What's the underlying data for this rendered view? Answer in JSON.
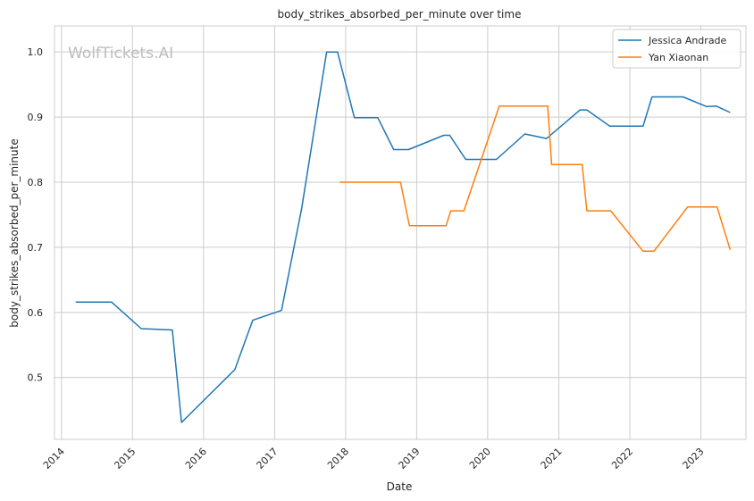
{
  "watermark": "WolfTickets.AI",
  "chart_data": {
    "type": "line",
    "title": "body_strikes_absorbed_per_minute over time",
    "xlabel": "Date",
    "ylabel": "body_strikes_absorbed_per_minute",
    "x_axis_type": "date",
    "xlim": [
      "2013-11-26",
      "2023-08-21"
    ],
    "ylim": [
      0.405,
      1.04
    ],
    "x_ticks": [
      "2014",
      "2015",
      "2016",
      "2017",
      "2018",
      "2019",
      "2020",
      "2021",
      "2022",
      "2023"
    ],
    "y_ticks": [
      "0.5",
      "0.6",
      "0.7",
      "0.8",
      "0.9",
      "1.0"
    ],
    "grid": true,
    "legend_position": "top-right",
    "colors": {
      "Jessica Andrade": "#1f77b4",
      "Yan Xiaonan": "#ff7f0e"
    },
    "series": [
      {
        "name": "Jessica Andrade",
        "color": "#1f77b4",
        "points": [
          [
            "2014-03-15",
            0.616
          ],
          [
            "2014-09-15",
            0.616
          ],
          [
            "2015-02-15",
            0.575
          ],
          [
            "2015-07-25",
            0.573
          ],
          [
            "2015-09-10",
            0.431
          ],
          [
            "2016-06-10",
            0.512
          ],
          [
            "2016-09-10",
            0.588
          ],
          [
            "2017-02-05",
            0.603
          ],
          [
            "2017-05-20",
            0.76
          ],
          [
            "2017-09-25",
            1.0
          ],
          [
            "2017-11-20",
            1.0
          ],
          [
            "2018-02-15",
            0.899
          ],
          [
            "2018-06-15",
            0.899
          ],
          [
            "2018-09-05",
            0.85
          ],
          [
            "2018-11-20",
            0.85
          ],
          [
            "2019-05-20",
            0.872
          ],
          [
            "2019-06-20",
            0.872
          ],
          [
            "2019-09-10",
            0.835
          ],
          [
            "2020-02-15",
            0.835
          ],
          [
            "2020-07-10",
            0.874
          ],
          [
            "2020-10-30",
            0.867
          ],
          [
            "2021-04-20",
            0.911
          ],
          [
            "2021-05-25",
            0.911
          ],
          [
            "2021-09-20",
            0.886
          ],
          [
            "2022-03-10",
            0.886
          ],
          [
            "2022-04-25",
            0.931
          ],
          [
            "2022-10-01",
            0.931
          ],
          [
            "2023-02-01",
            0.916
          ],
          [
            "2023-03-20",
            0.917
          ],
          [
            "2023-06-01",
            0.907
          ]
        ]
      },
      {
        "name": "Yan Xiaonan",
        "color": "#ff7f0e",
        "points": [
          [
            "2017-12-01",
            0.8
          ],
          [
            "2018-10-10",
            0.8
          ],
          [
            "2018-11-25",
            0.733
          ],
          [
            "2019-06-01",
            0.733
          ],
          [
            "2019-06-25",
            0.756
          ],
          [
            "2019-09-01",
            0.756
          ],
          [
            "2020-03-01",
            0.917
          ],
          [
            "2020-11-05",
            0.917
          ],
          [
            "2020-11-25",
            0.827
          ],
          [
            "2021-05-01",
            0.827
          ],
          [
            "2021-05-25",
            0.756
          ],
          [
            "2021-09-25",
            0.756
          ],
          [
            "2022-03-10",
            0.694
          ],
          [
            "2022-05-05",
            0.694
          ],
          [
            "2022-10-25",
            0.762
          ],
          [
            "2023-03-25",
            0.762
          ],
          [
            "2023-06-01",
            0.696
          ]
        ]
      }
    ]
  }
}
